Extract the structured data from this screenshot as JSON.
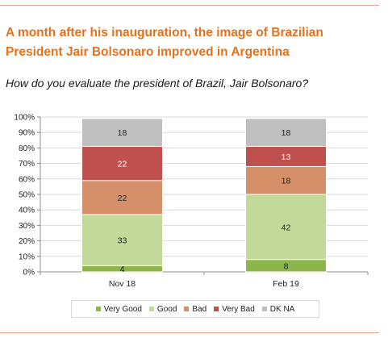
{
  "header": {
    "title_line1": "A month after his inauguration, the image of Brazilian",
    "title_line2": "President Jair Bolsonaro improved in Argentina",
    "subtitle": "How do you evaluate the president of Brazil, Jair Bolsonaro?"
  },
  "chart_data": {
    "type": "bar",
    "stacked": true,
    "categories": [
      "Nov 18",
      "Feb 19"
    ],
    "series": [
      {
        "name": "Very Good",
        "values": [
          4,
          8
        ],
        "color": "#8cb54a"
      },
      {
        "name": "Good",
        "values": [
          33,
          42
        ],
        "color": "#c3d99a"
      },
      {
        "name": "Bad",
        "values": [
          22,
          18
        ],
        "color": "#d5906a"
      },
      {
        "name": "Very Bad",
        "values": [
          22,
          13
        ],
        "color": "#c0504d"
      },
      {
        "name": "DK NA",
        "values": [
          18,
          18
        ],
        "color": "#bfbfbf"
      }
    ],
    "y_ticks": [
      "0%",
      "10%",
      "20%",
      "30%",
      "40%",
      "50%",
      "60%",
      "70%",
      "80%",
      "90%",
      "100%"
    ],
    "ylim": [
      0,
      100
    ],
    "grid": true,
    "legend_position": "bottom",
    "title": "",
    "xlabel": "",
    "ylabel": ""
  }
}
